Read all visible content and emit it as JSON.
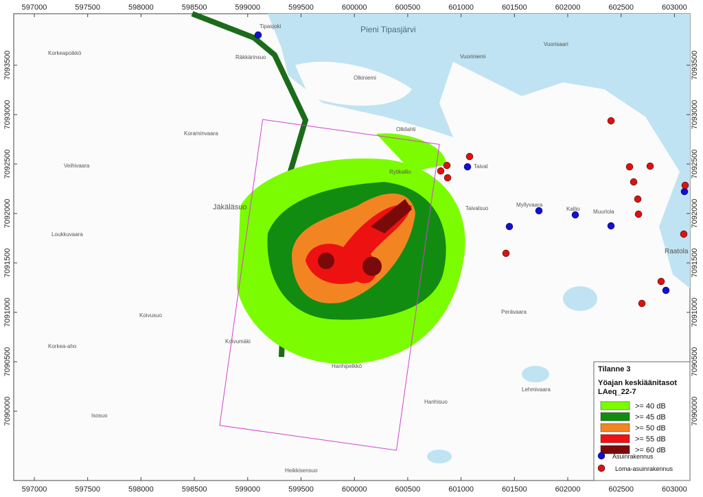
{
  "map": {
    "x_ticks": [
      597000,
      597500,
      598000,
      598500,
      599000,
      599500,
      600000,
      600500,
      601000,
      601500,
      602000,
      602500,
      603000
    ],
    "y_ticks": [
      7090000,
      7090500,
      7091000,
      7091500,
      7092000,
      7092500,
      7093000,
      7093500
    ],
    "places": [
      "Pieni Tipasjärvi",
      "Korkeapoikkö",
      "Räkkärinsuo",
      "Olkiniemi",
      "Koraminvaara",
      "Veihivaara",
      "Jäkäläsuo",
      "Loukkuvaara",
      "Olkilahti",
      "Rytikallio",
      "Taival",
      "Taivalsuo",
      "Myllyvaara",
      "Kallio",
      "Muurlola",
      "Vuorisaari",
      "Koivusuo",
      "Koivumäki",
      "Korkea-aho",
      "Hanhipelkkö",
      "Hanhisuo",
      "Isosuo",
      "Heikkisensuo",
      "Lehmivaara",
      "Perävaara",
      "Raatola",
      "Tipasjoki",
      "Vuoriniemi"
    ]
  },
  "legend": {
    "title": "Tilanne 3",
    "subtitle": "Yöajan keskiäänitasot",
    "metric": "LAeq_22-7",
    "levels": [
      {
        "label": ">= 40 dB",
        "color": "#7cfc00"
      },
      {
        "label": ">= 45 dB",
        "color": "#118c11"
      },
      {
        "label": ">= 50 dB",
        "color": "#f28522"
      },
      {
        "label": ">= 55 dB",
        "color": "#ee1111"
      },
      {
        "label": ">= 60 dB",
        "color": "#7a0a0a"
      }
    ],
    "buildings": [
      {
        "label": "Asuinrakennus",
        "color": "#1010d8"
      },
      {
        "label": "Loma-asuinrakennus",
        "color": "#e01010"
      }
    ]
  }
}
